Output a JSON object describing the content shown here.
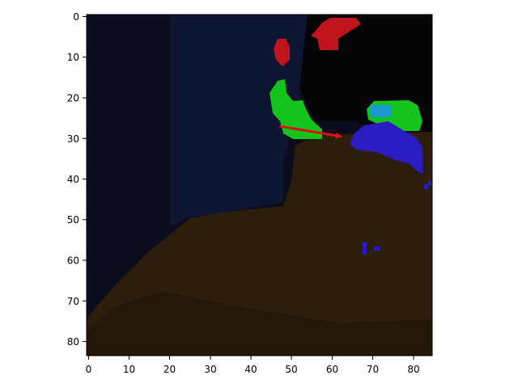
{
  "figure": {
    "x_ticks": [
      "0",
      "10",
      "20",
      "30",
      "40",
      "50",
      "60",
      "70",
      "80"
    ],
    "y_ticks": [
      "0",
      "10",
      "20",
      "30",
      "40",
      "50",
      "60",
      "70",
      "80"
    ]
  },
  "image": {
    "width_cells": 85,
    "height_cells": 84,
    "colors": {
      "background_dark": "#0b0d1c",
      "background_navy": "#0e1530",
      "shadow_black": "#050507",
      "floor_brown": "#2c1e0b",
      "floor_dark": "#231707",
      "mask_red": "#c0141c",
      "mask_green": "#12c41c",
      "mask_blue": "#2a1bc2",
      "mask_cyan": "#1a9ad0",
      "arrow_red": "#e01010"
    },
    "arrow": {
      "from": [
        47,
        27
      ],
      "to": [
        62,
        29.5
      ]
    }
  }
}
